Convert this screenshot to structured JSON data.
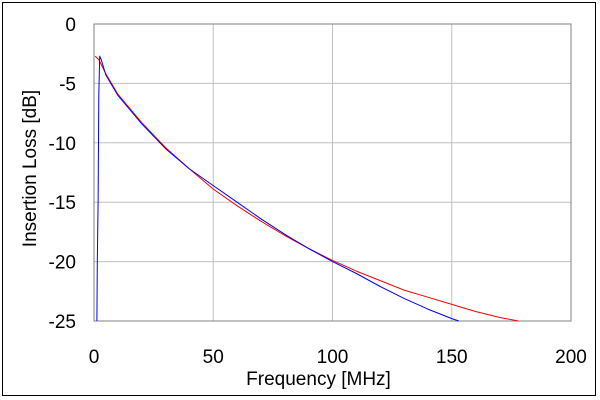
{
  "chart_data": {
    "type": "line",
    "title": "",
    "xlabel": "Frequency [MHz]",
    "ylabel": "Insertion Loss [dB]",
    "xlim": [
      0,
      200
    ],
    "ylim": [
      -25,
      0
    ],
    "xticks": [
      0,
      50,
      100,
      150,
      200
    ],
    "yticks": [
      0,
      -5,
      -10,
      -15,
      -20,
      -25
    ],
    "xtick_labels": [
      "0",
      "50",
      "100",
      "150",
      "200"
    ],
    "ytick_labels": [
      "0",
      "-5",
      "-10",
      "-15",
      "-20",
      "-25"
    ],
    "grid": true,
    "legend": "none",
    "series": [
      {
        "color": "#ff0000",
        "x": [
          0.5,
          2,
          5,
          10,
          20,
          30,
          40,
          50,
          60,
          70,
          80,
          90,
          100,
          110,
          120,
          130,
          140,
          150,
          160,
          170,
          178
        ],
        "y": [
          -2.7,
          -3.0,
          -4.2,
          -5.9,
          -8.3,
          -10.4,
          -12.2,
          -13.9,
          -15.3,
          -16.6,
          -17.8,
          -18.9,
          -19.9,
          -20.8,
          -21.6,
          -22.4,
          -23.0,
          -23.6,
          -24.2,
          -24.7,
          -25.0
        ]
      },
      {
        "color": "#0000ff",
        "x": [
          1.2,
          1.4,
          1.7,
          2.0,
          2.4,
          3,
          5,
          10,
          20,
          30,
          40,
          50,
          60,
          70,
          80,
          90,
          100,
          110,
          120,
          130,
          140,
          150,
          153
        ],
        "y": [
          -25.0,
          -20.0,
          -15.0,
          -6.0,
          -2.7,
          -3.0,
          -4.3,
          -6.0,
          -8.4,
          -10.5,
          -12.2,
          -13.6,
          -15.0,
          -16.4,
          -17.7,
          -18.9,
          -20.0,
          -21.0,
          -22.1,
          -23.1,
          -24.0,
          -24.8,
          -25.0
        ]
      }
    ]
  }
}
